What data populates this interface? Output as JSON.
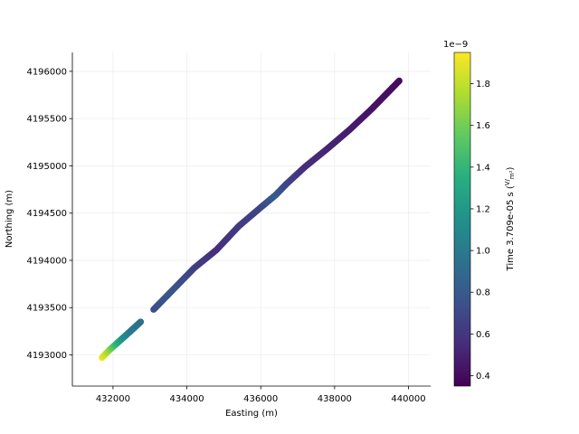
{
  "chart_data": {
    "type": "scatter",
    "xlabel": "Easting (m)",
    "ylabel": "Northing (m)",
    "xlim": [
      430900,
      440600
    ],
    "ylim": [
      4192670,
      4196200
    ],
    "x_ticks": [
      432000,
      434000,
      436000,
      438000,
      440000
    ],
    "x_tick_labels": [
      "432000",
      "434000",
      "436000",
      "438000",
      "440000"
    ],
    "y_ticks": [
      4193000,
      4193500,
      4194000,
      4194500,
      4195000,
      4195500,
      4196000
    ],
    "y_tick_labels": [
      "4193000",
      "4193500",
      "4194000",
      "4194500",
      "4195000",
      "4195500",
      "4196000"
    ],
    "grid": true,
    "colormap": "viridis",
    "segments": [
      {
        "points": [
          {
            "x": 431700,
            "y": 4192970,
            "c": 1.93
          },
          {
            "x": 431900,
            "y": 4193050,
            "c": 1.7
          },
          {
            "x": 432100,
            "y": 4193120,
            "c": 1.4
          },
          {
            "x": 432300,
            "y": 4193190,
            "c": 1.15
          },
          {
            "x": 432500,
            "y": 4193260,
            "c": 1.0
          },
          {
            "x": 432750,
            "y": 4193350,
            "c": 0.95
          }
        ]
      },
      {
        "points": [
          {
            "x": 433100,
            "y": 4193480,
            "c": 0.72
          },
          {
            "x": 433600,
            "y": 4193680,
            "c": 0.78
          },
          {
            "x": 434200,
            "y": 4193920,
            "c": 0.66
          },
          {
            "x": 434800,
            "y": 4194110,
            "c": 0.56
          },
          {
            "x": 435400,
            "y": 4194360,
            "c": 0.62
          },
          {
            "x": 436000,
            "y": 4194560,
            "c": 0.68
          },
          {
            "x": 436400,
            "y": 4194690,
            "c": 0.82
          },
          {
            "x": 436700,
            "y": 4194810,
            "c": 0.7
          },
          {
            "x": 437200,
            "y": 4194990,
            "c": 0.56
          },
          {
            "x": 437800,
            "y": 4195180,
            "c": 0.52
          },
          {
            "x": 438400,
            "y": 4195380,
            "c": 0.48
          },
          {
            "x": 439000,
            "y": 4195600,
            "c": 0.44
          },
          {
            "x": 439400,
            "y": 4195760,
            "c": 0.42
          },
          {
            "x": 439750,
            "y": 4195900,
            "c": 0.4
          }
        ]
      }
    ],
    "colorbar": {
      "label_prefix": "Time 3.709e-05 s (",
      "label_frac_num": "V",
      "label_frac_den": "m²",
      "label_suffix": ")",
      "offset_label": "1e−9",
      "range": [
        0.35,
        1.95
      ],
      "ticks": [
        0.4,
        0.6,
        0.8,
        1.0,
        1.2,
        1.4,
        1.6,
        1.8
      ],
      "tick_labels": [
        "0.4",
        "0.6",
        "0.8",
        "1.0",
        "1.2",
        "1.4",
        "1.6",
        "1.8"
      ]
    }
  }
}
